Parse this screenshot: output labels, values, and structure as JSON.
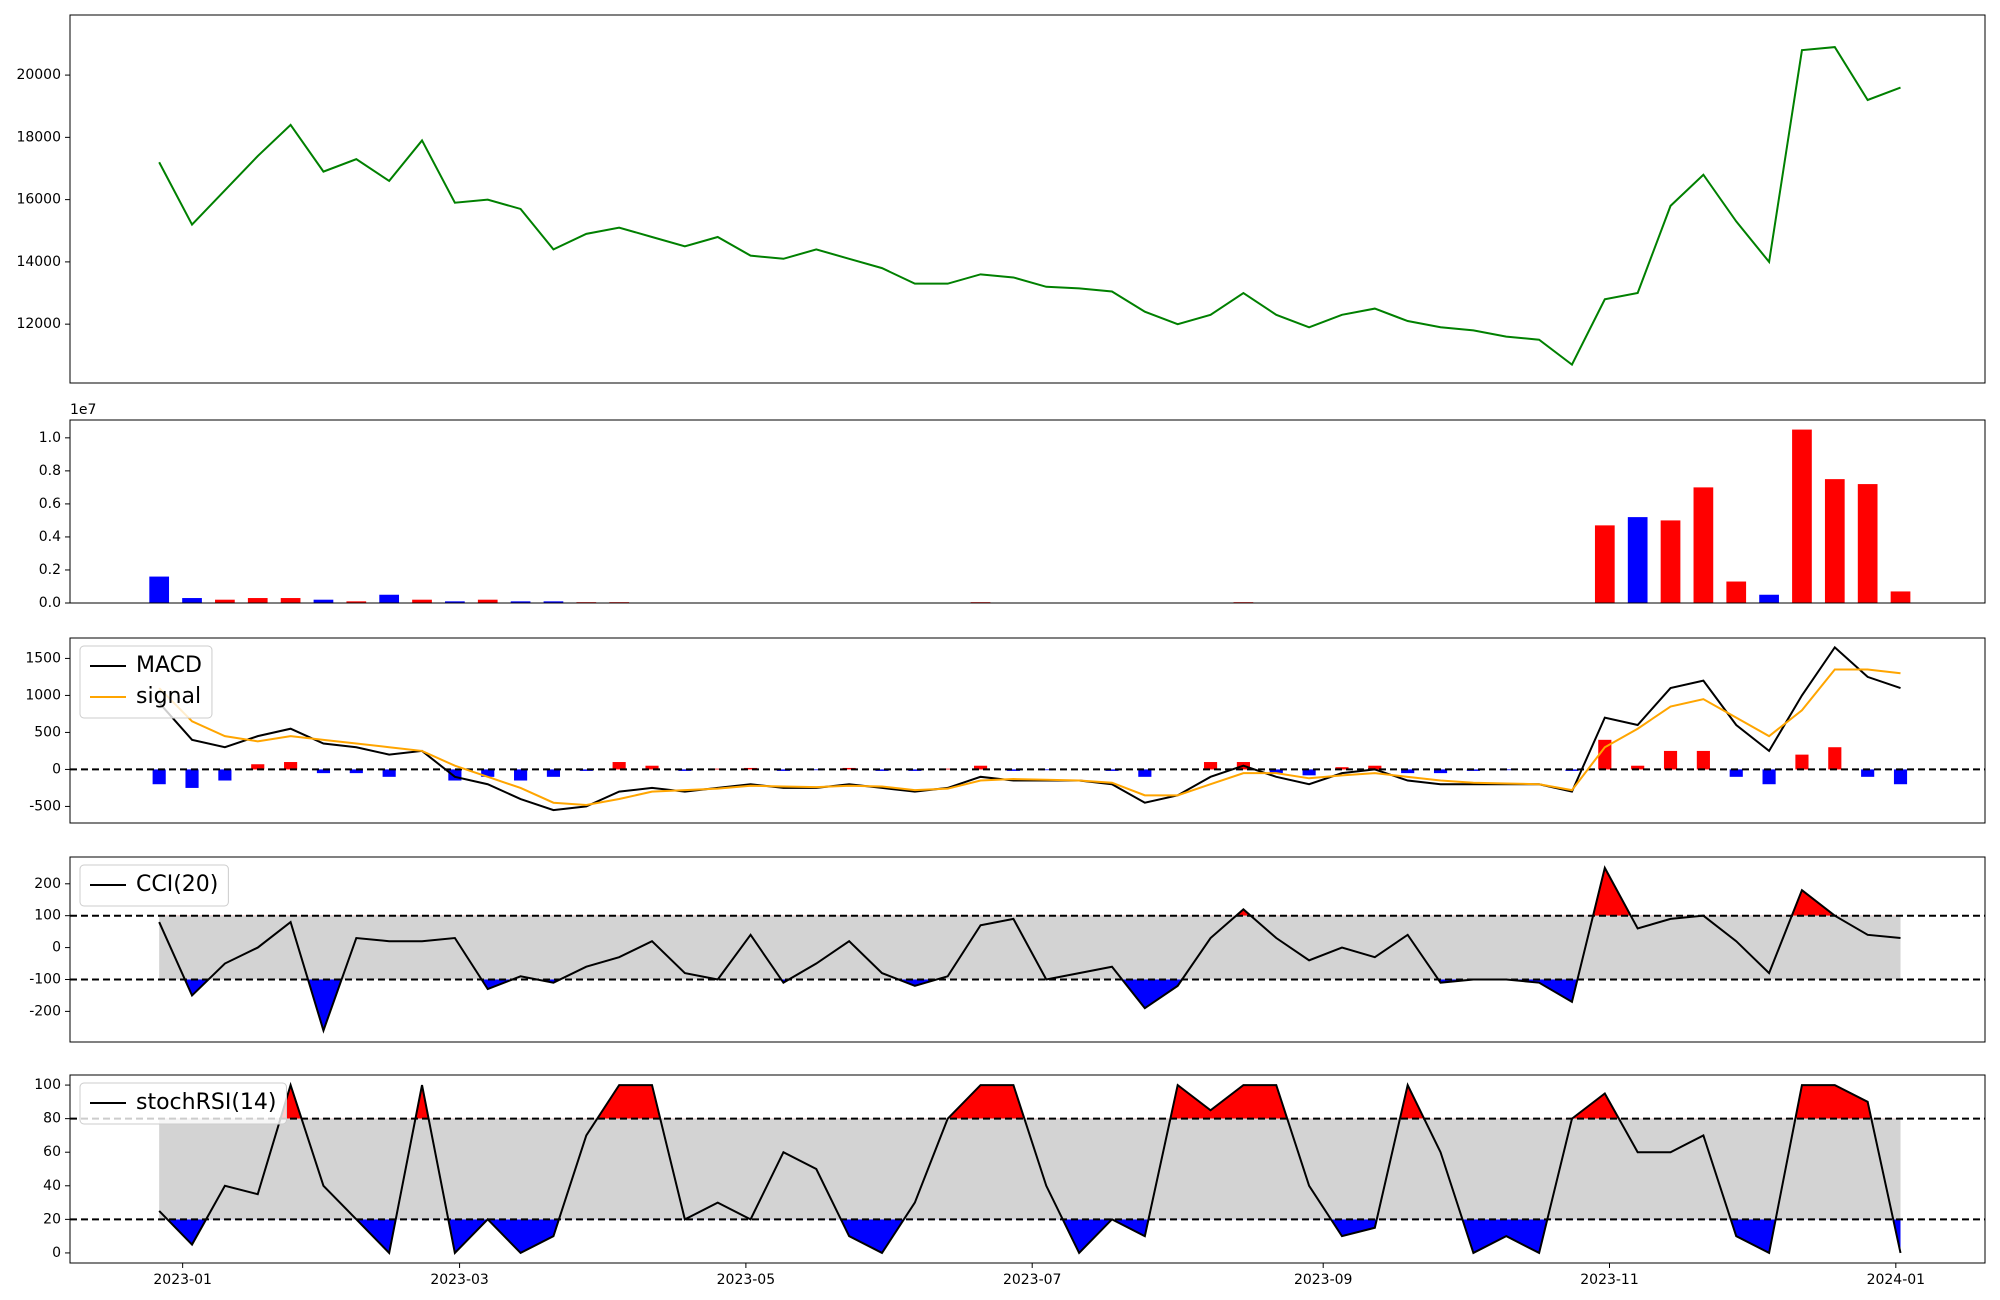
{
  "chart_data": [
    {
      "type": "line",
      "x": [
        "2022-12-27",
        "2023-01-03",
        "2023-01-10",
        "2023-01-17",
        "2023-01-24",
        "2023-01-31",
        "2023-02-07",
        "2023-02-14",
        "2023-02-21",
        "2023-02-28",
        "2023-03-07",
        "2023-03-14",
        "2023-03-21",
        "2023-03-28",
        "2023-04-04",
        "2023-04-11",
        "2023-04-18",
        "2023-04-25",
        "2023-05-02",
        "2023-05-09",
        "2023-05-16",
        "2023-05-23",
        "2023-05-30",
        "2023-06-06",
        "2023-06-13",
        "2023-06-20",
        "2023-06-27",
        "2023-07-04",
        "2023-07-11",
        "2023-07-18",
        "2023-07-25",
        "2023-08-01",
        "2023-08-08",
        "2023-08-15",
        "2023-08-22",
        "2023-08-29",
        "2023-09-05",
        "2023-09-12",
        "2023-09-19",
        "2023-09-26",
        "2023-10-03",
        "2023-10-10",
        "2023-10-17",
        "2023-10-24",
        "2023-10-31",
        "2023-11-07",
        "2023-11-14",
        "2023-11-21",
        "2023-11-28",
        "2023-12-05",
        "2023-12-12",
        "2023-12-19",
        "2023-12-26",
        "2024-01-02"
      ],
      "series": [
        {
          "color": "#008000",
          "values": [
            17200,
            15200,
            16300,
            17400,
            18400,
            16900,
            17300,
            16600,
            17900,
            15900,
            16000,
            15700,
            14400,
            14900,
            15100,
            14800,
            14500,
            14800,
            14200,
            14100,
            14400,
            14100,
            13800,
            13300,
            13300,
            13600,
            13500,
            13200,
            13150,
            13050,
            12400,
            12000,
            12300,
            13000,
            12300,
            11900,
            12300,
            12500,
            12100,
            11900,
            11800,
            11600,
            11500,
            10700,
            12800,
            13000,
            15800,
            16800,
            15300,
            14000,
            20800,
            20900,
            19200,
            19600
          ]
        }
      ],
      "xlim": [
        "2022-12-08",
        "2024-01-20"
      ],
      "ylim": [
        10110,
        21930
      ],
      "yticks": [
        12000,
        14000,
        16000,
        18000,
        20000
      ]
    },
    {
      "type": "bar",
      "offset_text": "1e7",
      "x": [
        "2022-12-27",
        "2023-01-03",
        "2023-01-10",
        "2023-01-17",
        "2023-01-24",
        "2023-01-31",
        "2023-02-07",
        "2023-02-14",
        "2023-02-21",
        "2023-02-28",
        "2023-03-07",
        "2023-03-14",
        "2023-03-21",
        "2023-03-28",
        "2023-04-04",
        "2023-04-11",
        "2023-04-18",
        "2023-04-25",
        "2023-05-02",
        "2023-05-09",
        "2023-05-16",
        "2023-05-23",
        "2023-05-30",
        "2023-06-06",
        "2023-06-13",
        "2023-06-20",
        "2023-06-27",
        "2023-07-04",
        "2023-07-11",
        "2023-07-18",
        "2023-07-25",
        "2023-08-01",
        "2023-08-08",
        "2023-08-15",
        "2023-08-22",
        "2023-08-29",
        "2023-09-05",
        "2023-09-12",
        "2023-09-19",
        "2023-09-26",
        "2023-10-03",
        "2023-10-10",
        "2023-10-17",
        "2023-10-24",
        "2023-10-31",
        "2023-11-07",
        "2023-11-14",
        "2023-11-21",
        "2023-11-28",
        "2023-12-05",
        "2023-12-12",
        "2023-12-19",
        "2023-12-26",
        "2024-01-02"
      ],
      "values": [
        0.16,
        0.03,
        0.02,
        0.03,
        0.03,
        0.02,
        0.01,
        0.05,
        0.02,
        0.01,
        0.02,
        0.01,
        0.01,
        0.005,
        0.005,
        0.003,
        0.003,
        0.003,
        0.003,
        0.003,
        0.003,
        0.002,
        0.002,
        0.002,
        0.003,
        0.005,
        0.003,
        0.002,
        0.002,
        0.002,
        0.002,
        0.002,
        0.003,
        0.005,
        0.003,
        0.002,
        0.002,
        0.003,
        0.002,
        0.002,
        0.002,
        0.002,
        0.002,
        0.003,
        0.47,
        0.52,
        0.5,
        0.7,
        0.13,
        0.05,
        1.05,
        0.75,
        0.72,
        0.07
      ],
      "colors": [
        "blue",
        "blue",
        "red",
        "red",
        "red",
        "blue",
        "red",
        "blue",
        "red",
        "blue",
        "red",
        "blue",
        "blue",
        "red",
        "red",
        "blue",
        "blue",
        "red",
        "blue",
        "blue",
        "red",
        "blue",
        "blue",
        "blue",
        "blue",
        "red",
        "blue",
        "blue",
        "blue",
        "blue",
        "blue",
        "blue",
        "red",
        "red",
        "blue",
        "blue",
        "red",
        "red",
        "blue",
        "blue",
        "blue",
        "blue",
        "blue",
        "blue",
        "red",
        "blue",
        "red",
        "red",
        "red",
        "blue",
        "red",
        "red",
        "red",
        "red"
      ],
      "xlim": [
        "2022-12-08",
        "2024-01-20"
      ],
      "ylim": [
        0,
        1.108
      ],
      "yticks": [
        {
          "value": 0,
          "label": "0.0"
        },
        {
          "value": 0.2,
          "label": "0.2"
        },
        {
          "value": 0.4,
          "label": "0.4"
        },
        {
          "value": 0.6,
          "label": "0.6"
        },
        {
          "value": 0.8,
          "label": "0.8"
        },
        {
          "value": 1,
          "label": "1.0"
        }
      ]
    },
    {
      "type": "combo",
      "legend": "upper left",
      "hlines": [
        0
      ],
      "x": [
        "2022-12-27",
        "2023-01-03",
        "2023-01-10",
        "2023-01-17",
        "2023-01-24",
        "2023-01-31",
        "2023-02-07",
        "2023-02-14",
        "2023-02-21",
        "2023-02-28",
        "2023-03-07",
        "2023-03-14",
        "2023-03-21",
        "2023-03-28",
        "2023-04-04",
        "2023-04-11",
        "2023-04-18",
        "2023-04-25",
        "2023-05-02",
        "2023-05-09",
        "2023-05-16",
        "2023-05-23",
        "2023-05-30",
        "2023-06-06",
        "2023-06-13",
        "2023-06-20",
        "2023-06-27",
        "2023-07-04",
        "2023-07-11",
        "2023-07-18",
        "2023-07-25",
        "2023-08-01",
        "2023-08-08",
        "2023-08-15",
        "2023-08-22",
        "2023-08-29",
        "2023-09-05",
        "2023-09-12",
        "2023-09-19",
        "2023-09-26",
        "2023-10-03",
        "2023-10-10",
        "2023-10-17",
        "2023-10-24",
        "2023-10-31",
        "2023-11-07",
        "2023-11-14",
        "2023-11-21",
        "2023-11-28",
        "2023-12-05",
        "2023-12-12",
        "2023-12-19",
        "2023-12-26",
        "2024-01-02"
      ],
      "series": [
        {
          "name": "MACD",
          "type": "line",
          "color": "black",
          "values": [
            900,
            400,
            300,
            450,
            550,
            350,
            300,
            200,
            250,
            -100,
            -200,
            -400,
            -550,
            -500,
            -300,
            -250,
            -300,
            -250,
            -200,
            -250,
            -250,
            -200,
            -250,
            -300,
            -250,
            -100,
            -150,
            -150,
            -150,
            -200,
            -450,
            -350,
            -100,
            50,
            -100,
            -200,
            -50,
            0,
            -150,
            -200,
            -200,
            -200,
            -200,
            -300,
            700,
            600,
            1100,
            1200,
            600,
            250,
            1000,
            1650,
            1250,
            1100
          ]
        },
        {
          "name": "signal",
          "type": "line",
          "color": "orange",
          "values": [
            1100,
            650,
            450,
            380,
            450,
            400,
            350,
            300,
            250,
            50,
            -100,
            -250,
            -450,
            -480,
            -400,
            -300,
            -280,
            -260,
            -220,
            -230,
            -240,
            -220,
            -230,
            -280,
            -260,
            -150,
            -130,
            -140,
            -150,
            -180,
            -350,
            -350,
            -200,
            -50,
            -50,
            -120,
            -80,
            -50,
            -100,
            -150,
            -180,
            -190,
            -200,
            -280,
            300,
            550,
            850,
            950,
            700,
            450,
            800,
            1350,
            1350,
            1300
          ]
        },
        {
          "type": "bar",
          "pos_color": "red",
          "neg_color": "blue",
          "values": [
            -200,
            -250,
            -150,
            70,
            100,
            -50,
            -50,
            -100,
            0,
            -150,
            -100,
            -150,
            -100,
            -20,
            100,
            50,
            -20,
            10,
            20,
            -20,
            -10,
            20,
            -20,
            -20,
            10,
            50,
            -20,
            -10,
            0,
            -20,
            -100,
            0,
            100,
            100,
            -50,
            -80,
            30,
            50,
            -50,
            -50,
            -20,
            -10,
            0,
            -20,
            400,
            50,
            250,
            250,
            -100,
            -200,
            200,
            300,
            -100,
            -200
          ]
        }
      ],
      "xlim": [
        "2022-12-08",
        "2024-01-20"
      ],
      "ylim": [
        -724,
        1776
      ],
      "yticks": [
        -500,
        0,
        500,
        1000,
        1500
      ]
    },
    {
      "type": "line",
      "legend": "upper left",
      "thresholds": [
        -100,
        100
      ],
      "band_color": "lightgray",
      "upper_color": "red",
      "lower_color": "blue",
      "x": [
        "2022-12-27",
        "2023-01-03",
        "2023-01-10",
        "2023-01-17",
        "2023-01-24",
        "2023-01-31",
        "2023-02-07",
        "2023-02-14",
        "2023-02-21",
        "2023-02-28",
        "2023-03-07",
        "2023-03-14",
        "2023-03-21",
        "2023-03-28",
        "2023-04-04",
        "2023-04-11",
        "2023-04-18",
        "2023-04-25",
        "2023-05-02",
        "2023-05-09",
        "2023-05-16",
        "2023-05-23",
        "2023-05-30",
        "2023-06-06",
        "2023-06-13",
        "2023-06-20",
        "2023-06-27",
        "2023-07-04",
        "2023-07-11",
        "2023-07-18",
        "2023-07-25",
        "2023-08-01",
        "2023-08-08",
        "2023-08-15",
        "2023-08-22",
        "2023-08-29",
        "2023-09-05",
        "2023-09-12",
        "2023-09-19",
        "2023-09-26",
        "2023-10-03",
        "2023-10-10",
        "2023-10-17",
        "2023-10-24",
        "2023-10-31",
        "2023-11-07",
        "2023-11-14",
        "2023-11-21",
        "2023-11-28",
        "2023-12-05",
        "2023-12-12",
        "2023-12-19",
        "2023-12-26",
        "2024-01-02"
      ],
      "series": [
        {
          "name": "CCI(20)",
          "color": "black",
          "values": [
            80,
            -150,
            -50,
            0,
            80,
            -260,
            30,
            20,
            20,
            30,
            -130,
            -90,
            -110,
            -60,
            -30,
            20,
            -80,
            -100,
            40,
            -110,
            -50,
            20,
            -80,
            -120,
            -90,
            70,
            90,
            -100,
            -80,
            -60,
            -190,
            -120,
            30,
            120,
            30,
            -40,
            0,
            -30,
            40,
            -110,
            -100,
            -100,
            -110,
            -170,
            250,
            60,
            90,
            100,
            20,
            -80,
            180,
            100,
            40,
            30
          ]
        }
      ],
      "xlim": [
        "2022-12-08",
        "2024-01-20"
      ],
      "ylim": [
        -296,
        284
      ],
      "yticks": [
        -200,
        -100,
        0,
        100,
        200
      ]
    },
    {
      "type": "line",
      "legend": "upper left",
      "thresholds": [
        20,
        80
      ],
      "band_color": "lightgray",
      "upper_color": "red",
      "lower_color": "blue",
      "x": [
        "2022-12-27",
        "2023-01-03",
        "2023-01-10",
        "2023-01-17",
        "2023-01-24",
        "2023-01-31",
        "2023-02-07",
        "2023-02-14",
        "2023-02-21",
        "2023-02-28",
        "2023-03-07",
        "2023-03-14",
        "2023-03-21",
        "2023-03-28",
        "2023-04-04",
        "2023-04-11",
        "2023-04-18",
        "2023-04-25",
        "2023-05-02",
        "2023-05-09",
        "2023-05-16",
        "2023-05-23",
        "2023-05-30",
        "2023-06-06",
        "2023-06-13",
        "2023-06-20",
        "2023-06-27",
        "2023-07-04",
        "2023-07-11",
        "2023-07-18",
        "2023-07-25",
        "2023-08-01",
        "2023-08-08",
        "2023-08-15",
        "2023-08-22",
        "2023-08-29",
        "2023-09-05",
        "2023-09-12",
        "2023-09-19",
        "2023-09-26",
        "2023-10-03",
        "2023-10-10",
        "2023-10-17",
        "2023-10-24",
        "2023-10-31",
        "2023-11-07",
        "2023-11-14",
        "2023-11-21",
        "2023-11-28",
        "2023-12-05",
        "2023-12-12",
        "2023-12-19",
        "2023-12-26",
        "2024-01-02"
      ],
      "series": [
        {
          "name": "stochRSI(14)",
          "color": "black",
          "values": [
            25,
            5,
            40,
            35,
            100,
            40,
            20,
            0,
            100,
            0,
            20,
            0,
            10,
            70,
            100,
            100,
            20,
            30,
            20,
            60,
            50,
            10,
            0,
            30,
            80,
            100,
            100,
            40,
            0,
            20,
            10,
            100,
            85,
            100,
            100,
            40,
            10,
            15,
            100,
            60,
            0,
            10,
            0,
            80,
            95,
            60,
            60,
            70,
            10,
            0,
            100,
            100,
            90,
            0
          ]
        }
      ],
      "xlim": [
        "2022-12-08",
        "2024-01-20"
      ],
      "ylim": [
        -6,
        106
      ],
      "yticks": [
        0,
        20,
        40,
        60,
        80,
        100
      ],
      "xticks": [
        {
          "value": "2023-01-01",
          "label": "2023-01"
        },
        {
          "value": "2023-03-01",
          "label": "2023-03"
        },
        {
          "value": "2023-05-01",
          "label": "2023-05"
        },
        {
          "value": "2023-07-01",
          "label": "2023-07"
        },
        {
          "value": "2023-09-01",
          "label": "2023-09"
        },
        {
          "value": "2023-11-01",
          "label": "2023-11"
        },
        {
          "value": "2024-01-01",
          "label": "2024-01"
        }
      ]
    }
  ]
}
